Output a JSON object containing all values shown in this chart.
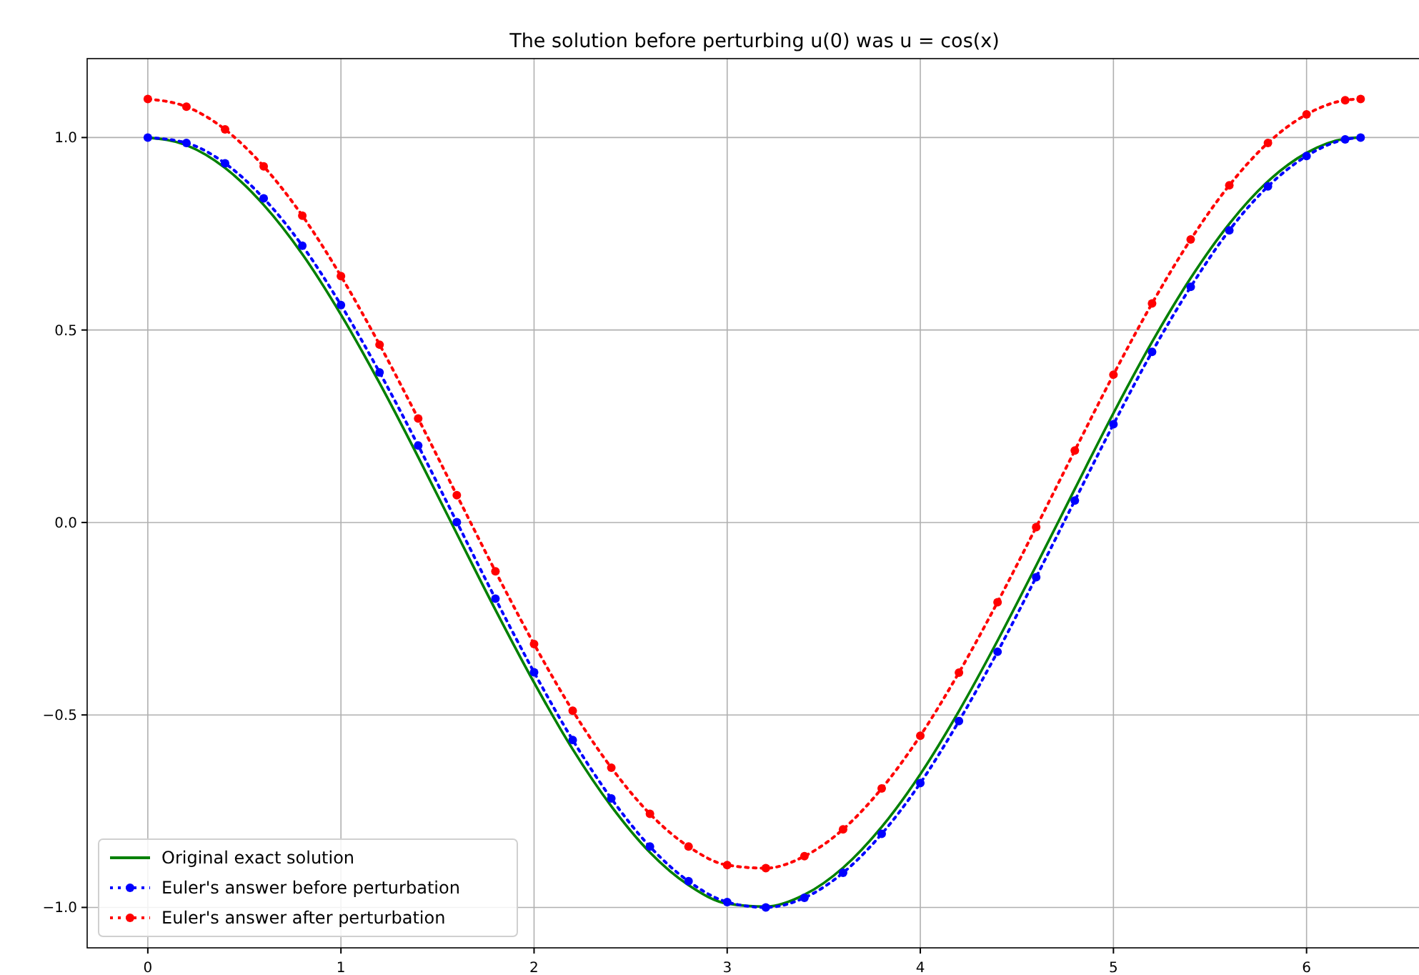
{
  "chart_data": {
    "type": "line",
    "title": "The solution before perturbing u(0) was u = cos(x)",
    "x": [
      0,
      0.2,
      0.4,
      0.6,
      0.8,
      1.0,
      1.2,
      1.4,
      1.6,
      1.8,
      2.0,
      2.2,
      2.4,
      2.6,
      2.8,
      3.0,
      3.2,
      3.4,
      3.6,
      3.8,
      4.0,
      4.2,
      4.4,
      4.6,
      4.8,
      5.0,
      5.2,
      5.4,
      5.6,
      5.8,
      6.0,
      6.2,
      6.28
    ],
    "series": [
      {
        "name": "Original exact solution",
        "color": "#008000",
        "line_style": "solid",
        "marker": "none",
        "values": [
          1.0,
          0.98,
          0.921,
          0.825,
          0.697,
          0.54,
          0.362,
          0.17,
          -0.029,
          -0.227,
          -0.416,
          -0.589,
          -0.737,
          -0.857,
          -0.942,
          -0.99,
          -0.998,
          -0.967,
          -0.897,
          -0.791,
          -0.654,
          -0.49,
          -0.307,
          -0.112,
          0.087,
          0.284,
          0.469,
          0.635,
          0.776,
          0.886,
          0.96,
          0.997,
          1.0
        ]
      },
      {
        "name": "Euler's answer before perturbation",
        "color": "#0000ff",
        "line_style": "dotted",
        "marker": "circle",
        "values": [
          1.0,
          0.986,
          0.933,
          0.842,
          0.719,
          0.565,
          0.39,
          0.2,
          0.001,
          -0.198,
          -0.389,
          -0.565,
          -0.717,
          -0.842,
          -0.932,
          -0.986,
          -1.0,
          -0.975,
          -0.91,
          -0.809,
          -0.677,
          -0.516,
          -0.336,
          -0.142,
          0.057,
          0.255,
          0.443,
          0.612,
          0.759,
          0.873,
          0.952,
          0.995,
          1.0
        ]
      },
      {
        "name": "Euler's answer after perturbation",
        "color": "#ff0000",
        "line_style": "dotted",
        "marker": "circle",
        "values": [
          1.1,
          1.08,
          1.021,
          0.925,
          0.797,
          0.64,
          0.462,
          0.27,
          0.071,
          -0.127,
          -0.316,
          -0.489,
          -0.637,
          -0.757,
          -0.842,
          -0.89,
          -0.898,
          -0.867,
          -0.797,
          -0.691,
          -0.554,
          -0.39,
          -0.207,
          -0.012,
          0.187,
          0.384,
          0.569,
          0.735,
          0.876,
          0.986,
          1.06,
          1.097,
          1.1
        ]
      }
    ],
    "xlim": [
      -0.314,
      6.597
    ],
    "xticks": [
      0,
      1,
      2,
      3,
      4,
      5,
      6
    ],
    "ylim": [
      -1.105,
      1.205
    ],
    "yticks": [
      {
        "value": -1,
        "label": "−1.0"
      },
      {
        "value": -0.5,
        "label": "−0.5"
      },
      {
        "value": 0,
        "label": "0.0"
      },
      {
        "value": 0.5,
        "label": "0.5"
      },
      {
        "value": 1,
        "label": "1.0"
      }
    ],
    "grid": true,
    "legend": "bottom left"
  }
}
